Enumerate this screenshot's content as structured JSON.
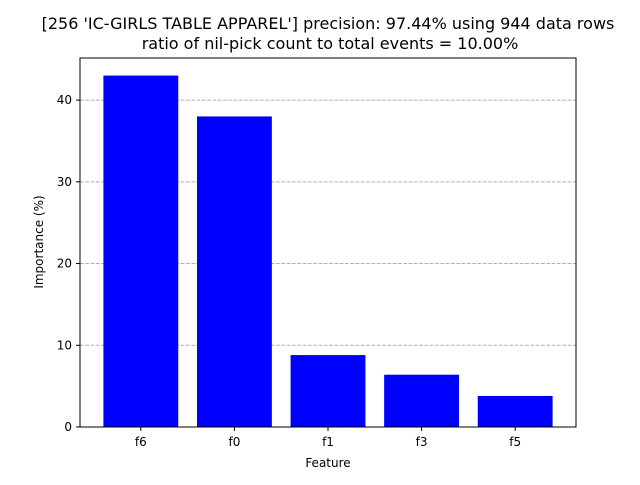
{
  "chart_data": {
    "type": "bar",
    "title": "[256 'IC-GIRLS TABLE APPAREL'] precision: 97.44% using 944 data rows",
    "subtitle": "ratio of nil-pick count to total events = 10.00%",
    "xlabel": "Feature",
    "ylabel": "Importance (%)",
    "categories": [
      "f6",
      "f0",
      "f1",
      "f3",
      "f5"
    ],
    "values": [
      43.0,
      38.0,
      8.8,
      6.4,
      3.8
    ],
    "ylim": [
      0,
      45.15
    ],
    "yticks": [
      0,
      10,
      20,
      30,
      40
    ],
    "grid": "y-dashed",
    "bar_color": "#0000ff",
    "grid_color": "#b0b0b0"
  }
}
